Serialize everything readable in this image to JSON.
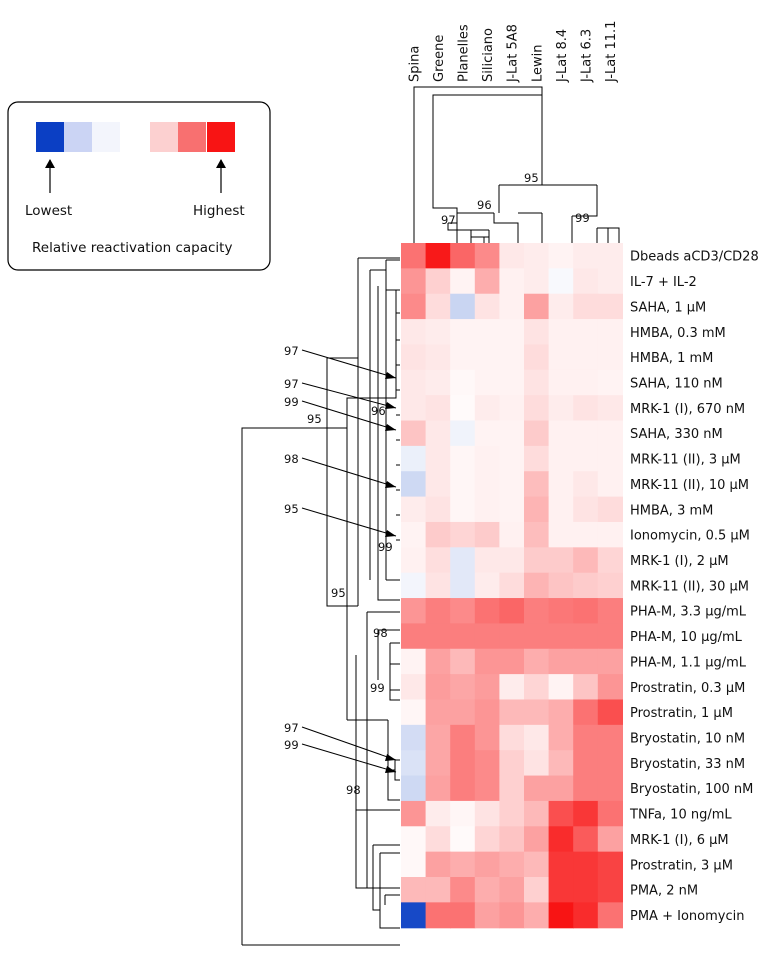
{
  "chart_data": {
    "type": "heatmap",
    "title": "",
    "columns": [
      "Spina",
      "Greene",
      "Planelles",
      "Siliciano",
      "J-Lat 5A8",
      "Lewin",
      "J-Lat 8.4",
      "J-Lat 6.3",
      "J-Lat 11.1"
    ],
    "rows": [
      "Dbeads aCD3/CD28",
      "IL-7 + IL-2",
      "SAHA, 1 µM",
      "HMBA, 0.3 mM",
      "HMBA, 1 mM",
      "SAHA, 110 nM",
      "MRK-1 (I), 670 nM",
      "SAHA, 330 nM",
      "MRK-11 (II), 3 µM",
      "MRK-11 (II), 10 µM",
      "HMBA, 3 mM",
      "Ionomycin, 0.5 µM",
      "MRK-1 (I), 2 µM",
      "MRK-11 (II), 30 µM",
      "PHA-M, 3.3 µg/mL",
      "PHA-M, 10 µg/mL",
      "PHA-M, 1.1 µg/mL",
      "Prostratin, 0.3 µM",
      "Prostratin, 1 µM",
      "Bryostatin, 10 nM",
      "Bryostatin, 33 nM",
      "Bryostatin, 100 nM",
      "TNFa, 10 ng/mL",
      "MRK-1 (I), 6 µM",
      "Prostratin, 3 µM",
      "PMA, 2 nM",
      "PMA + Ionomycin"
    ],
    "values": [
      [
        0.6,
        0.98,
        0.65,
        0.5,
        0.1,
        0.08,
        0.05,
        0.08,
        0.08
      ],
      [
        0.45,
        0.2,
        0.05,
        0.35,
        0.06,
        0.08,
        -0.03,
        0.1,
        0.08
      ],
      [
        0.5,
        0.15,
        -0.22,
        0.12,
        0.06,
        0.4,
        0.08,
        0.15,
        0.15
      ],
      [
        0.1,
        0.08,
        0.05,
        0.05,
        0.05,
        0.12,
        0.06,
        0.06,
        0.06
      ],
      [
        0.12,
        0.1,
        0.05,
        0.05,
        0.05,
        0.15,
        0.06,
        0.06,
        0.06
      ],
      [
        0.1,
        0.08,
        0.03,
        0.05,
        0.05,
        0.12,
        0.06,
        0.06,
        0.05
      ],
      [
        0.1,
        0.12,
        0.02,
        0.08,
        0.06,
        0.15,
        0.08,
        0.12,
        0.1
      ],
      [
        0.25,
        0.1,
        -0.06,
        0.05,
        0.05,
        0.22,
        0.06,
        0.06,
        0.06
      ],
      [
        -0.08,
        0.1,
        0.04,
        0.06,
        0.05,
        0.15,
        0.06,
        0.06,
        0.06
      ],
      [
        -0.2,
        0.1,
        0.04,
        0.06,
        0.05,
        0.28,
        0.06,
        0.1,
        0.06
      ],
      [
        0.08,
        0.12,
        0.04,
        0.06,
        0.05,
        0.32,
        0.06,
        0.12,
        0.15
      ],
      [
        0.05,
        0.22,
        0.18,
        0.22,
        0.06,
        0.28,
        0.06,
        0.06,
        0.06
      ],
      [
        0.06,
        0.14,
        -0.12,
        0.1,
        0.1,
        0.22,
        0.22,
        0.3,
        0.18
      ],
      [
        -0.05,
        0.12,
        -0.12,
        0.08,
        0.15,
        0.32,
        0.25,
        0.22,
        0.2
      ],
      [
        0.45,
        0.55,
        0.5,
        0.6,
        0.65,
        0.55,
        0.58,
        0.6,
        0.55
      ],
      [
        0.55,
        0.55,
        0.55,
        0.55,
        0.55,
        0.55,
        0.55,
        0.55,
        0.55
      ],
      [
        0.05,
        0.4,
        0.3,
        0.45,
        0.45,
        0.35,
        0.4,
        0.4,
        0.4
      ],
      [
        0.1,
        0.42,
        0.38,
        0.42,
        0.08,
        0.18,
        0.05,
        0.25,
        0.45
      ],
      [
        0.04,
        0.4,
        0.4,
        0.45,
        0.3,
        0.3,
        0.35,
        0.6,
        0.75
      ],
      [
        -0.18,
        0.38,
        0.55,
        0.45,
        0.15,
        0.1,
        0.35,
        0.55,
        0.55
      ],
      [
        -0.15,
        0.38,
        0.55,
        0.5,
        0.2,
        0.12,
        0.3,
        0.55,
        0.55
      ],
      [
        -0.2,
        0.4,
        0.55,
        0.5,
        0.2,
        0.4,
        0.4,
        0.55,
        0.55
      ],
      [
        0.45,
        0.08,
        0.04,
        0.12,
        0.2,
        0.3,
        0.75,
        0.85,
        0.6
      ],
      [
        0.03,
        0.15,
        0.02,
        0.18,
        0.25,
        0.4,
        0.9,
        0.7,
        0.4
      ],
      [
        0.03,
        0.4,
        0.35,
        0.4,
        0.35,
        0.3,
        0.85,
        0.85,
        0.8
      ],
      [
        0.3,
        0.3,
        0.5,
        0.35,
        0.4,
        0.2,
        0.85,
        0.85,
        0.8
      ],
      [
        -0.95,
        0.6,
        0.6,
        0.4,
        0.45,
        0.35,
        1.0,
        0.9,
        0.6
      ]
    ],
    "scale": {
      "min": -1,
      "max": 1,
      "low_color": "#0b3fc4",
      "mid_color": "#ffffff",
      "high_color": "#f81414"
    },
    "legend": {
      "placement": "top-left",
      "low_label": "Lowest",
      "high_label": "Highest",
      "caption": "Relative reactivation capacity",
      "swatches": [
        "#0b3fc4",
        "#cbd4f4",
        "#f3f5fc",
        "#fcd0d0",
        "#f87070",
        "#f81414"
      ]
    },
    "bootstrap_values": {
      "column_tree": [
        "95",
        "96",
        "97",
        "99"
      ],
      "row_tree": [
        "97",
        "97",
        "96",
        "99",
        "95",
        "98",
        "95",
        "99",
        "95",
        "98",
        "99",
        "97",
        "99",
        "98"
      ]
    }
  }
}
